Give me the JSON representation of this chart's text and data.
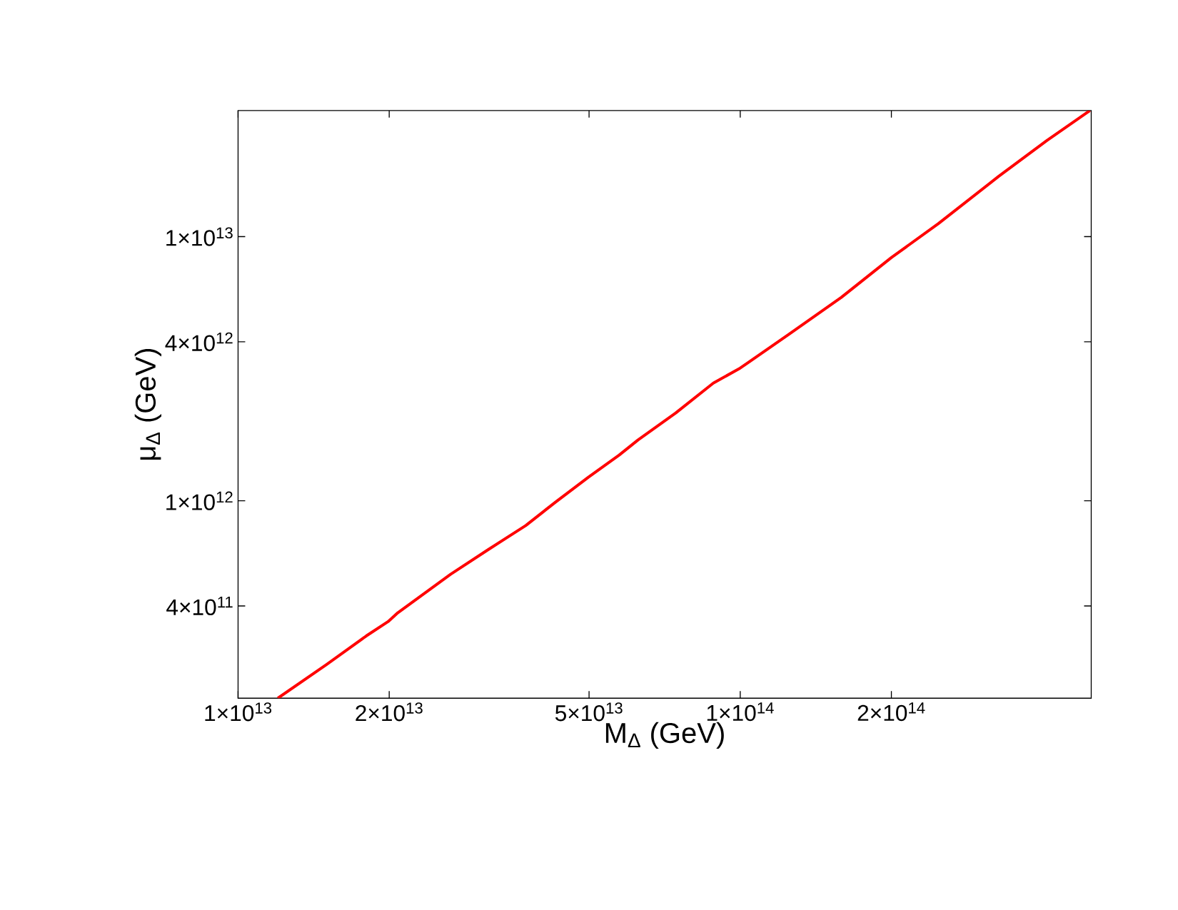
{
  "chart_data": {
    "type": "line",
    "xlabel": "M$_{Δ}$  (GeV)",
    "ylabel": "μ$_{Δ}$ (GeV)",
    "log": "xy",
    "grid": false,
    "xlim": [
      10000000000000.0,
      500000000000000.0
    ],
    "ylim": [
      179000000000.0,
      30000000000000.0
    ],
    "xticks": [
      {
        "value": 10000000000000.0,
        "label": "1×10$^{13}$"
      },
      {
        "value": 20000000000000.0,
        "label": "2×10$^{13}$"
      },
      {
        "value": 50000000000000.0,
        "label": "5×10$^{13}$"
      },
      {
        "value": 100000000000000.0,
        "label": "1×10$^{14}$"
      },
      {
        "value": 200000000000000.0,
        "label": "2×10$^{14}$"
      }
    ],
    "yticks": [
      {
        "value": 400000000000.0,
        "label": "4×10$^{11}$"
      },
      {
        "value": 1000000000000.0,
        "label": "1×10$^{12}$"
      },
      {
        "value": 4000000000000.0,
        "label": "4×10$^{12}$"
      },
      {
        "value": 10000000000000.0,
        "label": "1×10$^{13}$"
      }
    ],
    "series": [
      {
        "color": "#ff0000",
        "x": [
          12000000000000.0,
          15000000000000.0,
          18000000000000.0,
          19900000000000.0,
          20800000000000.0,
          26500000000000.0,
          31500000000000.0,
          37400000000000.0,
          42900000000000.0,
          49900000000000.0,
          57400000000000.0,
          62600000000000.0,
          74400000000000.0,
          88400000000000.0,
          100000000000000.0,
          125000000000000.0,
          159000000000000.0,
          200000000000000.0,
          248000000000000.0,
          327000000000000.0,
          408000000000000.0,
          497000000000000.0
        ],
        "values": [
          179000000000.0,
          240000000000.0,
          308000000000.0,
          349000000000.0,
          377000000000.0,
          527000000000.0,
          654000000000.0,
          806000000000.0,
          990000000000.0,
          1230000000000.0,
          1490000000000.0,
          1700000000000.0,
          2150000000000.0,
          2790000000000.0,
          3180000000000.0,
          4270000000000.0,
          5890000000000.0,
          8330000000000.0,
          11200000000000.0,
          16900000000000.0,
          23100000000000.0,
          30000000000000.0
        ]
      }
    ]
  }
}
